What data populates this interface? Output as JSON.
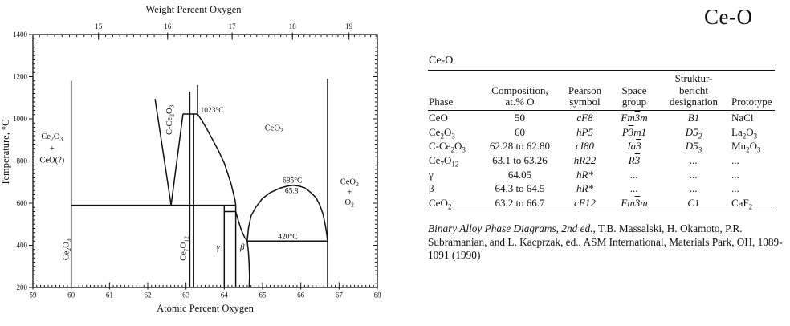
{
  "page": {
    "title": "Ce-O"
  },
  "chart_data": {
    "type": "line",
    "title": "Ce-O",
    "xlabel": "Atomic Percent Oxygen",
    "x2label": "Weight Percent Oxygen",
    "ylabel": "Temperature, °C",
    "xlim": [
      59,
      68
    ],
    "ylim": [
      200,
      1400
    ],
    "grid": false,
    "x_ticks": [
      59,
      60,
      61,
      62,
      63,
      64,
      65,
      66,
      67,
      68
    ],
    "y_ticks": [
      200,
      400,
      600,
      800,
      1000,
      1200,
      1400
    ],
    "top_ticks": [
      15,
      16,
      17,
      18,
      19
    ],
    "series": [
      {
        "name": "Ce2O3-boundary",
        "points": [
          [
            60,
            200
          ],
          [
            60,
            1180
          ]
        ]
      },
      {
        "name": "eutectoid-isotherm-590C",
        "points": [
          [
            60,
            590
          ],
          [
            64.3,
            590
          ]
        ]
      },
      {
        "name": "Ce7O12-left-boundary",
        "points": [
          [
            63.1,
            200
          ],
          [
            63.1,
            1130
          ]
        ]
      },
      {
        "name": "Ce7O12-right-boundary",
        "points": [
          [
            63.2,
            200
          ],
          [
            63.2,
            1023
          ]
        ]
      },
      {
        "name": "CeO2-upper-left-boundary",
        "points": [
          [
            63.3,
            1023
          ],
          [
            63.3,
            1160
          ]
        ]
      },
      {
        "name": "isotherm-1023C",
        "points": [
          [
            62.92,
            1023
          ],
          [
            63.3,
            1023
          ]
        ]
      },
      {
        "name": "C-Ce2O3-left-boundary",
        "points": [
          [
            62.19,
            1095
          ],
          [
            62.61,
            590
          ]
        ]
      },
      {
        "name": "C-Ce2O3-right-boundary",
        "points": [
          [
            62.61,
            590
          ],
          [
            62.92,
            1023
          ]
        ]
      },
      {
        "name": "CeO2-lower-left-boundary",
        "points": [
          [
            63.3,
            1023
          ],
          [
            63.42,
            990
          ],
          [
            63.55,
            950
          ],
          [
            63.7,
            900
          ],
          [
            63.85,
            848
          ],
          [
            64.0,
            790
          ],
          [
            64.1,
            735
          ],
          [
            64.18,
            690
          ],
          [
            64.24,
            645
          ],
          [
            64.28,
            615
          ],
          [
            64.3,
            590
          ]
        ]
      },
      {
        "name": "isotherm-560C",
        "points": [
          [
            64.0,
            560
          ],
          [
            64.3,
            560
          ]
        ]
      },
      {
        "name": "gamma-left-boundary",
        "points": [
          [
            64.0,
            200
          ],
          [
            64.0,
            590
          ]
        ]
      },
      {
        "name": "beta-left-boundary",
        "points": [
          [
            64.3,
            200
          ],
          [
            64.3,
            590
          ]
        ]
      },
      {
        "name": "beta-right-boundary",
        "points": [
          [
            64.3,
            560
          ],
          [
            64.37,
            515
          ],
          [
            64.45,
            470
          ],
          [
            64.53,
            438
          ],
          [
            64.6,
            420
          ],
          [
            64.63,
            370
          ],
          [
            64.65,
            310
          ],
          [
            64.66,
            250
          ],
          [
            64.65,
            200
          ]
        ]
      },
      {
        "name": "isotherm-420C",
        "points": [
          [
            64.6,
            420
          ],
          [
            66.7,
            420
          ]
        ]
      },
      {
        "name": "miscibility-dome",
        "points": [
          [
            64.6,
            420
          ],
          [
            64.63,
            480
          ],
          [
            64.7,
            540
          ],
          [
            64.82,
            580
          ],
          [
            65.0,
            623
          ],
          [
            65.2,
            650
          ],
          [
            65.45,
            671
          ],
          [
            65.65,
            681
          ],
          [
            65.8,
            685
          ],
          [
            65.95,
            681
          ],
          [
            66.1,
            673
          ],
          [
            66.25,
            652
          ],
          [
            66.4,
            625
          ],
          [
            66.5,
            590
          ],
          [
            66.58,
            548
          ],
          [
            66.64,
            495
          ],
          [
            66.68,
            450
          ],
          [
            66.7,
            420
          ]
        ]
      },
      {
        "name": "CeO2-right-boundary",
        "points": [
          [
            66.7,
            200
          ],
          [
            66.7,
            1190
          ]
        ]
      }
    ],
    "annotations": [
      {
        "text": "Ce{2}O{3}",
        "x": 59.5,
        "y": 905
      },
      {
        "text": "+",
        "x": 59.5,
        "y": 848
      },
      {
        "text": "CeO(?)",
        "x": 59.5,
        "y": 792
      },
      {
        "text": "Ce{2}O{3}",
        "x": 59.93,
        "y": 380,
        "rotate": -90
      },
      {
        "text": "Ce{7}O{12}",
        "x": 63.0,
        "y": 385,
        "rotate": -90
      },
      {
        "text": "C-Ce{2}O{3}",
        "x": 62.63,
        "y": 995,
        "rotate": -90
      },
      {
        "text": "1023°C",
        "x": 63.68,
        "y": 1030,
        "cls": "small"
      },
      {
        "text": "CeO{2}",
        "x": 65.3,
        "y": 945
      },
      {
        "text": "685°C",
        "x": 65.78,
        "y": 697,
        "cls": "small"
      },
      {
        "text": "65.8",
        "x": 65.76,
        "y": 648,
        "cls": "small"
      },
      {
        "text": "420°C",
        "x": 65.66,
        "y": 430,
        "cls": "small"
      },
      {
        "text": "CeO{2}",
        "x": 67.27,
        "y": 690
      },
      {
        "text": "+",
        "x": 67.27,
        "y": 640
      },
      {
        "text": "O{2}",
        "x": 67.27,
        "y": 592
      },
      {
        "text": "γ",
        "x": 63.84,
        "y": 380,
        "cls": "ital"
      },
      {
        "text": "β",
        "x": 64.47,
        "y": 380,
        "cls": "ital"
      }
    ]
  },
  "table": {
    "caption": "Ce-O",
    "columns": [
      "Phase",
      "Composition,\nat.% O",
      "Pearson\nsymbol",
      "Space\ngroup",
      "Struktur-\nbericht\ndesignation",
      "Prototype"
    ],
    "rows": [
      [
        "CeO",
        "50",
        "cF8",
        "Fm[3]m",
        "B1",
        "NaCl"
      ],
      [
        "Ce{2}O{3}",
        "60",
        "hP5",
        "P[3]m1",
        "D5{2}",
        "La{2}O{3}"
      ],
      [
        "C-Ce{2}O{3}",
        "62.28 to 62.80",
        "cI80",
        "Ia[3]",
        "D5{3}",
        "Mn{2}O{3}"
      ],
      [
        "Ce{7}O{12}",
        "63.1 to 63.26",
        "hR22",
        "R[3]",
        "...",
        "..."
      ],
      [
        "γ",
        "64.05",
        "hR*",
        "...",
        "...",
        "..."
      ],
      [
        "β",
        "64.3 to 64.5",
        "hR*",
        "...",
        "...",
        "..."
      ],
      [
        "CeO{2}",
        "63.2 to 66.7",
        "cF12",
        "Fm[3]m",
        "C1",
        "CaF{2}"
      ]
    ]
  },
  "citation": {
    "italic": "Binary Alloy Phase Diagrams, 2nd ed.,",
    "rest": " T.B. Massalski, H. Okamoto, P.R. Subramanian, and L. Kacprzak, ed., ASM International, Materials Park, OH, 1089-1091 (1990)"
  }
}
